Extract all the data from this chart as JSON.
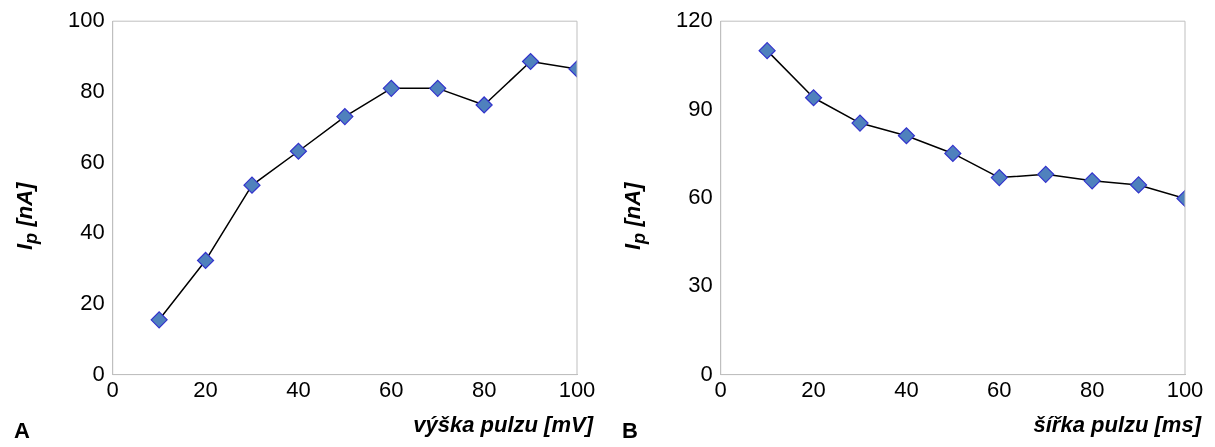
{
  "chart_data": [
    {
      "type": "line",
      "xlabel": "výška pulzu [mV]",
      "ylabel": "I$_{p}$ [nA]",
      "annotations": [
        "A"
      ],
      "x": [
        10,
        20,
        30,
        40,
        50,
        60,
        70,
        80,
        90,
        100
      ],
      "series": [
        {
          "color": "#4f81bd",
          "values": [
            15.5,
            32.3,
            53.6,
            63.2,
            73,
            81,
            81,
            76.3,
            88.6,
            86.5
          ]
        }
      ],
      "xlim": [
        0,
        100
      ],
      "xticks": [
        0,
        20,
        40,
        60,
        80,
        100
      ],
      "ylim": [
        0,
        100
      ],
      "yticks": [
        0,
        20,
        40,
        60,
        80,
        100
      ],
      "grid": false,
      "legend": false,
      "marker": "diamond",
      "line_style": "solid"
    },
    {
      "type": "line",
      "xlabel": "šířka pulzu [ms]",
      "ylabel": "I$_{p}$ [nA]",
      "annotations": [
        "B"
      ],
      "x": [
        10,
        20,
        30,
        40,
        50,
        60,
        70,
        80,
        90,
        100
      ],
      "series": [
        {
          "color": "#4f81bd",
          "values": [
            110,
            94,
            85.4,
            81.1,
            75.1,
            66.9,
            68,
            65.8,
            64.4,
            59.8
          ]
        }
      ],
      "xlim": [
        0,
        100
      ],
      "xticks": [
        0,
        20,
        40,
        60,
        80,
        100
      ],
      "ylim": [
        0,
        120
      ],
      "yticks": [
        0,
        30,
        60,
        90,
        120
      ],
      "grid": false,
      "legend": false,
      "marker": "diamond",
      "line_style": "solid"
    }
  ]
}
